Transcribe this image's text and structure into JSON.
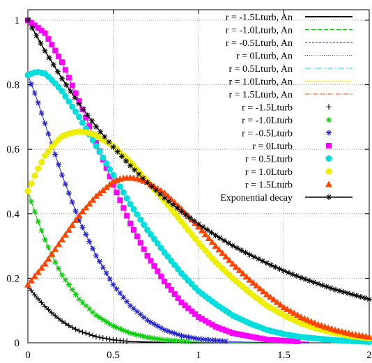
{
  "chart_data": {
    "type": "line",
    "title": "",
    "xlabel": "",
    "ylabel": "",
    "xlim": [
      0,
      2
    ],
    "ylim": [
      0,
      1.05
    ],
    "grid": true,
    "legend_position": "top-right",
    "x_ticks": [
      "0",
      "0.5",
      "1",
      "1.5",
      "2"
    ],
    "y_ticks": [
      "0",
      "0.2",
      "0.4",
      "0.6",
      "0.8",
      "1"
    ],
    "analytic_series": [
      {
        "name": "r = -1.5Lturb, An",
        "color": "#000000",
        "dash": "solid"
      },
      {
        "name": "r = -1.0Lturb, An",
        "color": "#00cc00",
        "dash": "6,3"
      },
      {
        "name": "r = -0.5Lturb, An",
        "color": "#2222cc",
        "dash": "2,2"
      },
      {
        "name": "r =    0Lturb, An",
        "color": "#ff00ff",
        "dash": "1,2"
      },
      {
        "name": "r =  0.5Lturb, An",
        "color": "#00dddd",
        "dash": "8,3,2,3"
      },
      {
        "name": "r =  1.0Lturb, An",
        "color": "#eeee00",
        "dash": "2,2"
      },
      {
        "name": "r =  1.5Lturb, An",
        "color": "#ff4400",
        "dash": "6,2,1,2"
      }
    ],
    "marker_series": [
      {
        "name": "r = -1.5Lturb",
        "color": "#000000",
        "marker": "plus"
      },
      {
        "name": "r = -1.0Lturb",
        "color": "#00cc00",
        "marker": "star"
      },
      {
        "name": "r = -0.5Lturb",
        "color": "#2222cc",
        "marker": "star"
      },
      {
        "name": "r =    0Lturb",
        "color": "#ff00ff",
        "marker": "square"
      },
      {
        "name": "r =  0.5Lturb",
        "color": "#00dddd",
        "marker": "circle"
      },
      {
        "name": "r =  1.0Lturb",
        "color": "#eeee00",
        "marker": "circle"
      },
      {
        "name": "r =  1.5Lturb",
        "color": "#ff4400",
        "marker": "triangle"
      }
    ],
    "exponential_series": {
      "name": "Exponential decay",
      "color": "#000000",
      "marker": "star"
    },
    "series_values": [
      {
        "name": "r = -1.5Lturb",
        "x": [
          0,
          0.05,
          0.1,
          0.15,
          0.2,
          0.25,
          0.3,
          0.4,
          0.5,
          0.6,
          0.8,
          1.0,
          1.2,
          1.65
        ],
        "y": [
          0.175,
          0.142,
          0.113,
          0.088,
          0.067,
          0.05,
          0.037,
          0.019,
          0.009,
          0.004,
          0.001,
          0,
          0,
          0
        ]
      },
      {
        "name": "r = -1.0Lturb",
        "x": [
          0,
          0.05,
          0.1,
          0.15,
          0.2,
          0.3,
          0.4,
          0.5,
          0.6,
          0.7,
          0.8,
          1.0,
          1.2,
          1.4,
          1.65
        ],
        "y": [
          0.47,
          0.39,
          0.32,
          0.26,
          0.21,
          0.135,
          0.085,
          0.052,
          0.03,
          0.017,
          0.009,
          0.002,
          0,
          0,
          0
        ]
      },
      {
        "name": "r = -0.5Lturb",
        "x": [
          0,
          0.05,
          0.1,
          0.15,
          0.2,
          0.3,
          0.4,
          0.5,
          0.6,
          0.7,
          0.8,
          0.9,
          1.0,
          1.2,
          1.4,
          1.65
        ],
        "y": [
          0.83,
          0.76,
          0.68,
          0.6,
          0.52,
          0.38,
          0.27,
          0.18,
          0.115,
          0.07,
          0.04,
          0.022,
          0.012,
          0.003,
          0.001,
          0
        ]
      },
      {
        "name": "r =    0Lturb",
        "x": [
          0,
          0.1,
          0.2,
          0.3,
          0.4,
          0.5,
          0.6,
          0.7,
          0.8,
          0.9,
          1.0,
          1.1,
          1.2,
          1.4,
          1.65
        ],
        "y": [
          1.0,
          0.96,
          0.87,
          0.75,
          0.62,
          0.49,
          0.37,
          0.27,
          0.19,
          0.125,
          0.08,
          0.05,
          0.03,
          0.01,
          0.002
        ]
      },
      {
        "name": "r =  0.5Lturb",
        "x": [
          0,
          0.05,
          0.1,
          0.15,
          0.2,
          0.3,
          0.4,
          0.5,
          0.6,
          0.7,
          0.8,
          0.9,
          1.0,
          1.1,
          1.2,
          1.3,
          1.4,
          1.5,
          1.6,
          1.8,
          2.0
        ],
        "y": [
          0.83,
          0.84,
          0.835,
          0.81,
          0.78,
          0.7,
          0.61,
          0.52,
          0.43,
          0.35,
          0.28,
          0.215,
          0.16,
          0.12,
          0.085,
          0.06,
          0.04,
          0.027,
          0.018,
          0.008,
          0.003
        ]
      },
      {
        "name": "r =  1.0Lturb",
        "x": [
          0,
          0.05,
          0.1,
          0.15,
          0.2,
          0.25,
          0.3,
          0.35,
          0.4,
          0.5,
          0.6,
          0.7,
          0.8,
          0.9,
          1.0,
          1.1,
          1.2,
          1.3,
          1.4,
          1.5,
          1.6,
          1.7,
          1.8,
          1.9,
          2.0
        ],
        "y": [
          0.47,
          0.53,
          0.58,
          0.615,
          0.64,
          0.65,
          0.655,
          0.652,
          0.643,
          0.61,
          0.56,
          0.5,
          0.44,
          0.375,
          0.31,
          0.25,
          0.2,
          0.155,
          0.115,
          0.085,
          0.06,
          0.043,
          0.03,
          0.02,
          0.014
        ]
      },
      {
        "name": "r =  1.5Lturb",
        "x": [
          0,
          0.1,
          0.2,
          0.3,
          0.4,
          0.5,
          0.55,
          0.6,
          0.65,
          0.7,
          0.8,
          0.9,
          1.0,
          1.1,
          1.2,
          1.3,
          1.4,
          1.5,
          1.6,
          1.7,
          1.8,
          1.9,
          2.0
        ],
        "y": [
          0.18,
          0.245,
          0.32,
          0.395,
          0.455,
          0.5,
          0.51,
          0.512,
          0.508,
          0.498,
          0.465,
          0.415,
          0.36,
          0.3,
          0.245,
          0.195,
          0.15,
          0.11,
          0.08,
          0.057,
          0.04,
          0.027,
          0.018
        ]
      },
      {
        "name": "Exponential decay",
        "x": [
          0,
          0.1,
          0.2,
          0.3,
          0.4,
          0.5,
          0.6,
          0.7,
          0.8,
          0.9,
          1.0,
          1.1,
          1.2,
          1.3,
          1.4,
          1.5,
          1.6,
          1.7,
          1.8,
          1.9,
          2.0
        ],
        "y": [
          1.0,
          0.905,
          0.819,
          0.741,
          0.67,
          0.607,
          0.549,
          0.497,
          0.449,
          0.407,
          0.368,
          0.333,
          0.301,
          0.273,
          0.247,
          0.223,
          0.202,
          0.183,
          0.165,
          0.15,
          0.135
        ]
      }
    ]
  }
}
